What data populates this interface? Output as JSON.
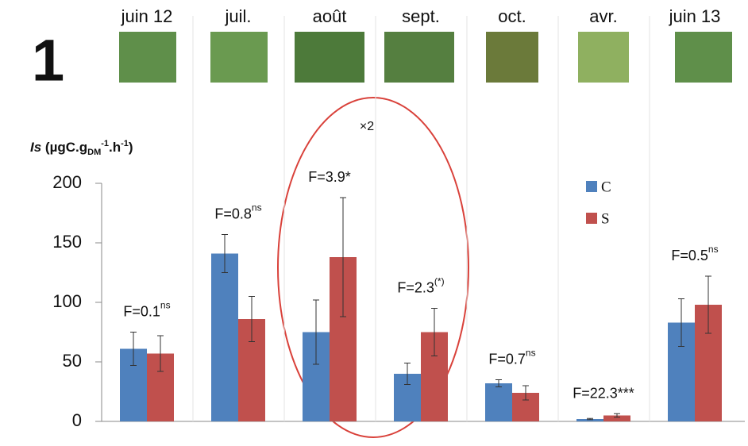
{
  "panel_label": "1",
  "chart_data": {
    "type": "bar",
    "categories": [
      "juin 12",
      "juil.",
      "août",
      "sept.",
      "oct.",
      "avr.",
      "juin 13"
    ],
    "y_label": [
      "Is",
      " (µgC.g",
      "DM",
      "-1",
      ".h",
      "-1",
      ")"
    ],
    "ylim": [
      0,
      200
    ],
    "yticks": [
      0,
      50,
      100,
      150,
      200
    ],
    "series": [
      {
        "name": "C",
        "color": "#4f81bd",
        "values": [
          61,
          141,
          75,
          40,
          32,
          2,
          83
        ],
        "errors": [
          14,
          16,
          27,
          9,
          3,
          0.5,
          20
        ]
      },
      {
        "name": "S",
        "color": "#c0504d",
        "values": [
          57,
          86,
          138,
          75,
          24,
          5,
          98
        ],
        "errors": [
          15,
          19,
          50,
          20,
          6,
          1.5,
          24
        ]
      }
    ],
    "annotations": [
      {
        "text": "F=0.1",
        "sup": "ns"
      },
      {
        "text": "F=0.8",
        "sup": "ns"
      },
      {
        "text": "F=3.9*"
      },
      {
        "text": "F=2.3",
        "sup": "(*)"
      },
      {
        "text": "F=0.7",
        "sup": "ns"
      },
      {
        "text": "F=22.3***"
      },
      {
        "text": "F=0.5",
        "sup": "ns"
      }
    ],
    "highlight_note": "×2"
  }
}
